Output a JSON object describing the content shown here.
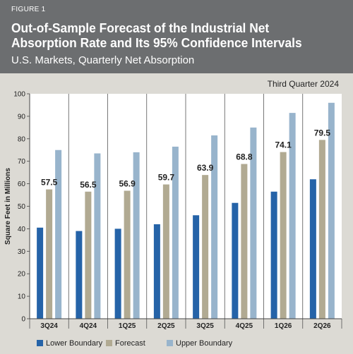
{
  "figure_label": "FIGURE 1",
  "title_line1": "Out-of-Sample Forecast of the Industrial Net",
  "title_line2": "Absorption Rate and Its 95% Confidence Intervals",
  "subtitle": "U.S. Markets, Quarterly Net Absorption",
  "period": "Third Quarter 2024",
  "colors": {
    "header_bg": "#6c6e70",
    "panel_bg": "#dcdad4",
    "lower": "#2563a8",
    "forecast": "#b1aa92",
    "upper": "#98b4cc"
  },
  "chart_data": {
    "type": "bar",
    "ylabel": "Square Feet in Millions",
    "ylim": [
      0,
      100
    ],
    "yticks": [
      0,
      10,
      20,
      30,
      40,
      50,
      60,
      70,
      80,
      90,
      100
    ],
    "categories": [
      "3Q24",
      "4Q24",
      "1Q25",
      "2Q25",
      "3Q25",
      "4Q25",
      "1Q26",
      "2Q26"
    ],
    "series": [
      {
        "name": "Lower Boundary",
        "values": [
          40.5,
          39,
          40,
          42,
          46,
          51.5,
          56.5,
          62
        ]
      },
      {
        "name": "Forecast",
        "values": [
          57.5,
          56.5,
          56.9,
          59.7,
          63.9,
          68.8,
          74.1,
          79.5
        ]
      },
      {
        "name": "Upper Boundary",
        "values": [
          75,
          73.5,
          74,
          76.5,
          81.5,
          85,
          91.5,
          96
        ]
      }
    ],
    "data_labels": [
      "57.5",
      "56.5",
      "56.9",
      "59.7",
      "63.9",
      "68.8",
      "74.1",
      "79.5"
    ],
    "grid": "vertical separators",
    "legend_position": "bottom"
  }
}
